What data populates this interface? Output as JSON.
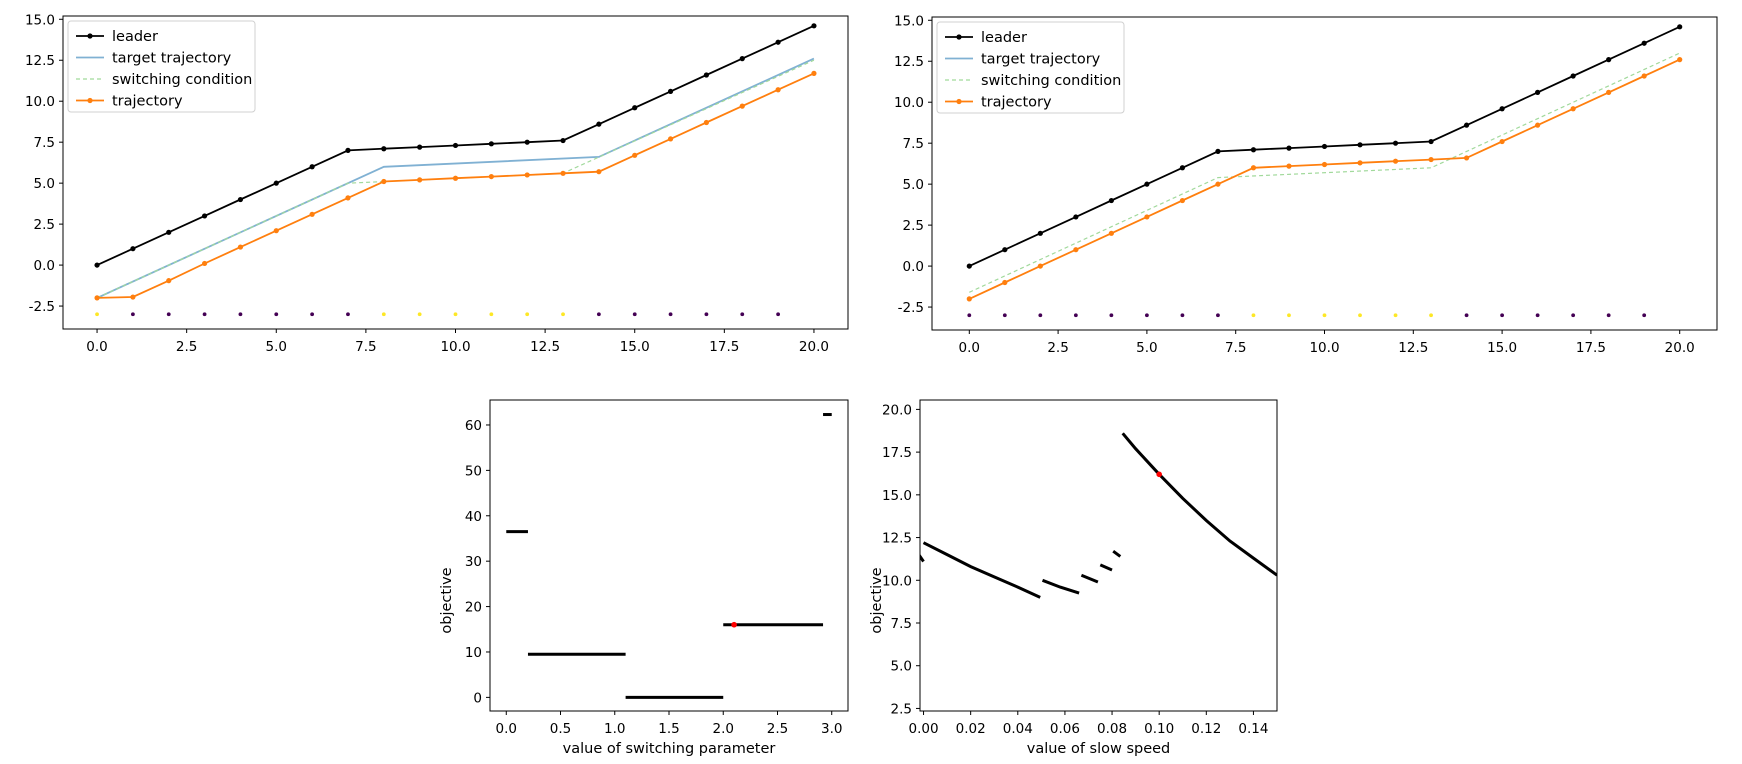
{
  "chart_data": [
    {
      "type": "line",
      "id": "top-left",
      "x_ticks": [
        "0.0",
        "2.5",
        "5.0",
        "7.5",
        "10.0",
        "12.5",
        "15.0",
        "17.5",
        "20.0"
      ],
      "y_ticks": [
        "-2.5",
        "0.0",
        "2.5",
        "5.0",
        "7.5",
        "10.0",
        "12.5",
        "15.0"
      ],
      "xlim": [
        -0.95,
        20.95
      ],
      "ylim": [
        -3.9,
        15.2
      ],
      "legend_position": "upper-left",
      "series": [
        {
          "name": "leader",
          "label": "leader",
          "color": "#000000",
          "style": "line-markers",
          "x": [
            0,
            1,
            2,
            3,
            4,
            5,
            6,
            7,
            8,
            9,
            10,
            11,
            12,
            13,
            14,
            15,
            16,
            17,
            18,
            19,
            20
          ],
          "y": [
            0,
            1,
            2,
            3,
            4,
            5,
            6,
            7,
            7.1,
            7.2,
            7.3,
            7.4,
            7.5,
            7.6,
            8.6,
            9.6,
            10.6,
            11.6,
            12.6,
            13.6,
            14.6
          ]
        },
        {
          "name": "target",
          "label": "target trajectory",
          "color": "#80b1d3",
          "style": "line",
          "x": [
            0,
            8,
            14,
            20
          ],
          "y": [
            -2,
            6,
            6.6,
            12.6
          ]
        },
        {
          "name": "switching",
          "label": "switching condition",
          "color": "#a1d99b",
          "style": "dashed",
          "x": [
            0,
            7,
            13,
            20
          ],
          "y": [
            -2,
            5,
            5.6,
            12.5
          ]
        },
        {
          "name": "trajectory",
          "label": "trajectory",
          "color": "#ff7f0e",
          "style": "line-markers",
          "x": [
            0,
            1,
            2,
            3,
            4,
            5,
            6,
            7,
            8,
            9,
            10,
            11,
            12,
            13,
            14,
            15,
            16,
            17,
            18,
            19,
            20
          ],
          "y": [
            -2,
            -1.95,
            -0.95,
            0.1,
            1.1,
            2.1,
            3.1,
            4.1,
            5.1,
            5.2,
            5.3,
            5.4,
            5.5,
            5.6,
            5.7,
            6.7,
            7.7,
            8.7,
            9.7,
            10.7,
            11.7
          ]
        }
      ],
      "status_dots": {
        "y": -3,
        "x": [
          0,
          1,
          2,
          3,
          4,
          5,
          6,
          7,
          8,
          9,
          10,
          11,
          12,
          13,
          14,
          15,
          16,
          17,
          18,
          19
        ],
        "state": [
          1,
          0,
          0,
          0,
          0,
          0,
          0,
          0,
          1,
          1,
          1,
          1,
          1,
          1,
          0,
          0,
          0,
          0,
          0,
          0
        ],
        "colors": {
          "0": "#440154",
          "1": "#fde725"
        }
      }
    },
    {
      "type": "line",
      "id": "top-right",
      "x_ticks": [
        "0.0",
        "2.5",
        "5.0",
        "7.5",
        "10.0",
        "12.5",
        "15.0",
        "17.5",
        "20.0"
      ],
      "y_ticks": [
        "-2.5",
        "0.0",
        "2.5",
        "5.0",
        "7.5",
        "10.0",
        "12.5",
        "15.0"
      ],
      "xlim": [
        -1.05,
        21.05
      ],
      "ylim": [
        -3.9,
        15.2
      ],
      "legend_position": "upper-left",
      "series": [
        {
          "name": "leader",
          "label": "leader",
          "color": "#000000",
          "style": "line-markers",
          "x": [
            0,
            1,
            2,
            3,
            4,
            5,
            6,
            7,
            8,
            9,
            10,
            11,
            12,
            13,
            14,
            15,
            16,
            17,
            18,
            19,
            20
          ],
          "y": [
            0,
            1,
            2,
            3,
            4,
            5,
            6,
            7,
            7.1,
            7.2,
            7.3,
            7.4,
            7.5,
            7.6,
            8.6,
            9.6,
            10.6,
            11.6,
            12.6,
            13.6,
            14.6
          ]
        },
        {
          "name": "target",
          "label": "target trajectory",
          "color": "#80b1d3",
          "style": "line",
          "x": [],
          "y": []
        },
        {
          "name": "switching",
          "label": "switching condition",
          "color": "#a1d99b",
          "style": "dashed",
          "x": [
            0,
            7,
            13,
            20
          ],
          "y": [
            -1.6,
            5.4,
            6.0,
            13.0
          ]
        },
        {
          "name": "trajectory",
          "label": "trajectory",
          "color": "#ff7f0e",
          "style": "line-markers",
          "x": [
            0,
            1,
            2,
            3,
            4,
            5,
            6,
            7,
            8,
            9,
            10,
            11,
            12,
            13,
            14,
            15,
            16,
            17,
            18,
            19,
            20
          ],
          "y": [
            -2,
            -1,
            0,
            1,
            2,
            3,
            4,
            5,
            6,
            6.1,
            6.2,
            6.3,
            6.4,
            6.5,
            6.6,
            7.6,
            8.6,
            9.6,
            10.6,
            11.6,
            12.6
          ]
        }
      ],
      "status_dots": {
        "y": -3,
        "x": [
          0,
          1,
          2,
          3,
          4,
          5,
          6,
          7,
          8,
          9,
          10,
          11,
          12,
          13,
          14,
          15,
          16,
          17,
          18,
          19
        ],
        "state": [
          0,
          0,
          0,
          0,
          0,
          0,
          0,
          0,
          1,
          1,
          1,
          1,
          1,
          1,
          0,
          0,
          0,
          0,
          0,
          0
        ],
        "colors": {
          "0": "#440154",
          "1": "#fde725"
        }
      }
    },
    {
      "type": "scatter",
      "id": "bottom-left",
      "xlabel": "value of switching parameter",
      "ylabel": "objective",
      "x_ticks": [
        "0.0",
        "0.5",
        "1.0",
        "1.5",
        "2.0",
        "2.5",
        "3.0"
      ],
      "y_ticks": [
        "0",
        "10",
        "20",
        "30",
        "40",
        "50",
        "60"
      ],
      "xlim": [
        -0.15,
        3.15
      ],
      "ylim": [
        -3,
        65.5
      ],
      "segments": [
        {
          "x0": 0.0,
          "x1": 0.2,
          "y": 36.5
        },
        {
          "x0": 0.2,
          "x1": 1.1,
          "y": 9.5
        },
        {
          "x0": 1.1,
          "x1": 2.0,
          "y": 0
        },
        {
          "x0": 2.0,
          "x1": 2.92,
          "y": 16
        },
        {
          "x0": 2.92,
          "x1": 3.0,
          "y": 62.3
        }
      ],
      "highlight": {
        "x": 2.1,
        "y": 16,
        "color": "#ff0000"
      }
    },
    {
      "type": "scatter",
      "id": "bottom-right",
      "xlabel": "value of slow speed",
      "ylabel": "objective",
      "x_ticks": [
        "0.00",
        "0.02",
        "0.04",
        "0.06",
        "0.08",
        "0.10",
        "0.12",
        "0.14"
      ],
      "y_ticks": [
        "2.5",
        "5.0",
        "7.5",
        "10.0",
        "12.5",
        "15.0",
        "17.5",
        "20.0"
      ],
      "xlim": [
        -0.0015,
        0.15
      ],
      "ylim": [
        2.35,
        20.55
      ],
      "curves": [
        {
          "points": [
            [
              -0.002,
              11.5
            ],
            [
              0.0,
              11.1
            ]
          ]
        },
        {
          "points": [
            [
              0.0,
              12.2
            ],
            [
              0.01,
              11.5
            ],
            [
              0.02,
              10.8
            ],
            [
              0.03,
              10.2
            ],
            [
              0.04,
              9.6
            ],
            [
              0.0495,
              9.0
            ]
          ]
        },
        {
          "points": [
            [
              0.0505,
              10.0
            ],
            [
              0.058,
              9.6
            ],
            [
              0.066,
              9.25
            ]
          ]
        },
        {
          "points": [
            [
              0.067,
              10.3
            ],
            [
              0.074,
              9.9
            ]
          ]
        },
        {
          "points": [
            [
              0.075,
              10.9
            ],
            [
              0.08,
              10.6
            ]
          ]
        },
        {
          "points": [
            [
              0.0805,
              11.7
            ],
            [
              0.0835,
              11.4
            ]
          ]
        },
        {
          "points": [
            [
              0.0845,
              18.6
            ],
            [
              0.09,
              17.7
            ],
            [
              0.1,
              16.2
            ],
            [
              0.11,
              14.8
            ],
            [
              0.12,
              13.5
            ],
            [
              0.13,
              12.3
            ],
            [
              0.14,
              11.3
            ],
            [
              0.15,
              10.3
            ]
          ]
        }
      ],
      "highlight": {
        "x": 0.1,
        "y": 16.2,
        "color": "#ff0000"
      }
    }
  ]
}
